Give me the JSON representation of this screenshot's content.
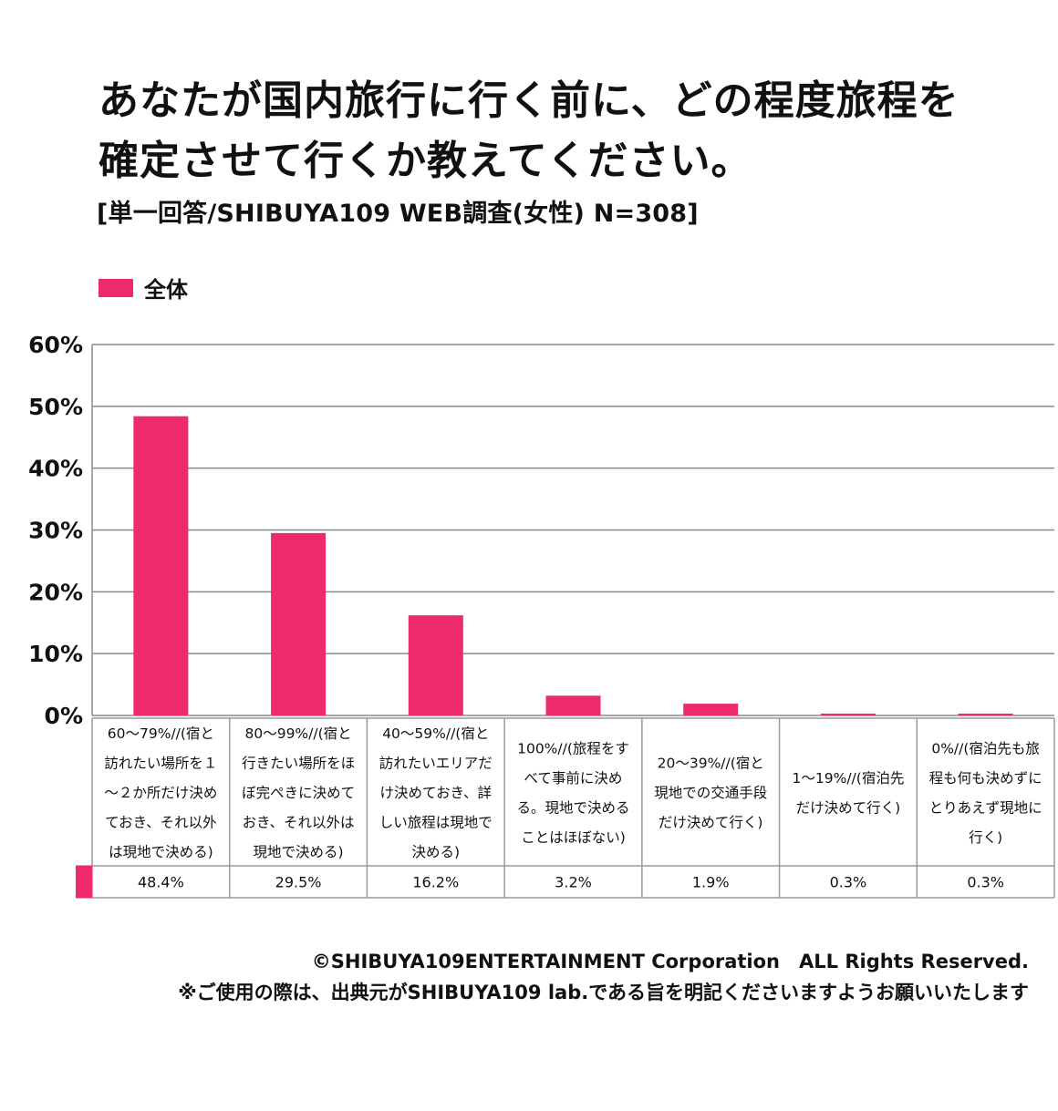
{
  "title": {
    "line1": "あなたが国内旅行に行く前に、どの程度旅程を",
    "line2": "確定させて行くか教えてください。"
  },
  "subtitle": "[単一回答/SHIBUYA109 WEB調査(女性) N=308]",
  "colors": {
    "bar": "#ee2a6e",
    "grid": "#8a8a8a",
    "table_border": "#9a9a9a"
  },
  "chart_data": {
    "type": "bar",
    "categories": [
      "60〜79%//(宿と訪れたい場所を１〜２か所だけ決めておき、それ以外は現地で決める)",
      "80〜99%//(宿と行きたい場所をほぼ完ぺきに決めておき、それ以外は現地で決める)",
      "40〜59%//(宿と訪れたいエリアだけ決めておき、詳しい旅程は現地で決める)",
      "100%//(旅程をすべて事前に決める。現地で決めることはほぼない)",
      "20〜39%//(宿と現地での交通手段だけ決めて行く)",
      "1〜19%//(宿泊先だけ決めて行く)",
      "0%//(宿泊先も旅程も何も決めずにとりあえず現地に行く)"
    ],
    "category_lines": [
      [
        "60〜79%//(宿と",
        "訪れたい場所を１",
        "〜２か所だけ決め",
        "ておき、それ以外",
        "は現地で決める)"
      ],
      [
        "80〜99%//(宿と",
        "行きたい場所をほ",
        "ぼ完ぺきに決めて",
        "おき、それ以外は",
        "現地で決める)"
      ],
      [
        "40〜59%//(宿と",
        "訪れたいエリアだ",
        "け決めておき、詳",
        "しい旅程は現地で",
        "決める)"
      ],
      [
        "100%//(旅程をす",
        "べて事前に決め",
        "る。現地で決める",
        "ことはほぼない)"
      ],
      [
        "20〜39%//(宿と",
        "現地での交通手段",
        "だけ決めて行く)"
      ],
      [
        "1〜19%//(宿泊先",
        "だけ決めて行く)"
      ],
      [
        "0%//(宿泊先も旅",
        "程も何も決めずに",
        "とりあえず現地に",
        "行く)"
      ]
    ],
    "series": [
      {
        "name": "全体",
        "values": [
          48.4,
          29.5,
          16.2,
          3.2,
          1.9,
          0.3,
          0.3
        ]
      }
    ],
    "value_labels": [
      "48.4%",
      "29.5%",
      "16.2%",
      "3.2%",
      "1.9%",
      "0.3%",
      "0.3%"
    ],
    "yticks": [
      "0%",
      "10%",
      "20%",
      "30%",
      "40%",
      "50%",
      "60%"
    ],
    "ylim": [
      0,
      60
    ],
    "grid": true,
    "legend": "top-left"
  },
  "footer": {
    "line1": "©SHIBUYA109ENTERTAINMENT Corporation　ALL Rights Reserved.",
    "line2": "※ご使用の際は、出典元がSHIBUYA109 lab.である旨を明記くださいますようお願いいたします"
  }
}
